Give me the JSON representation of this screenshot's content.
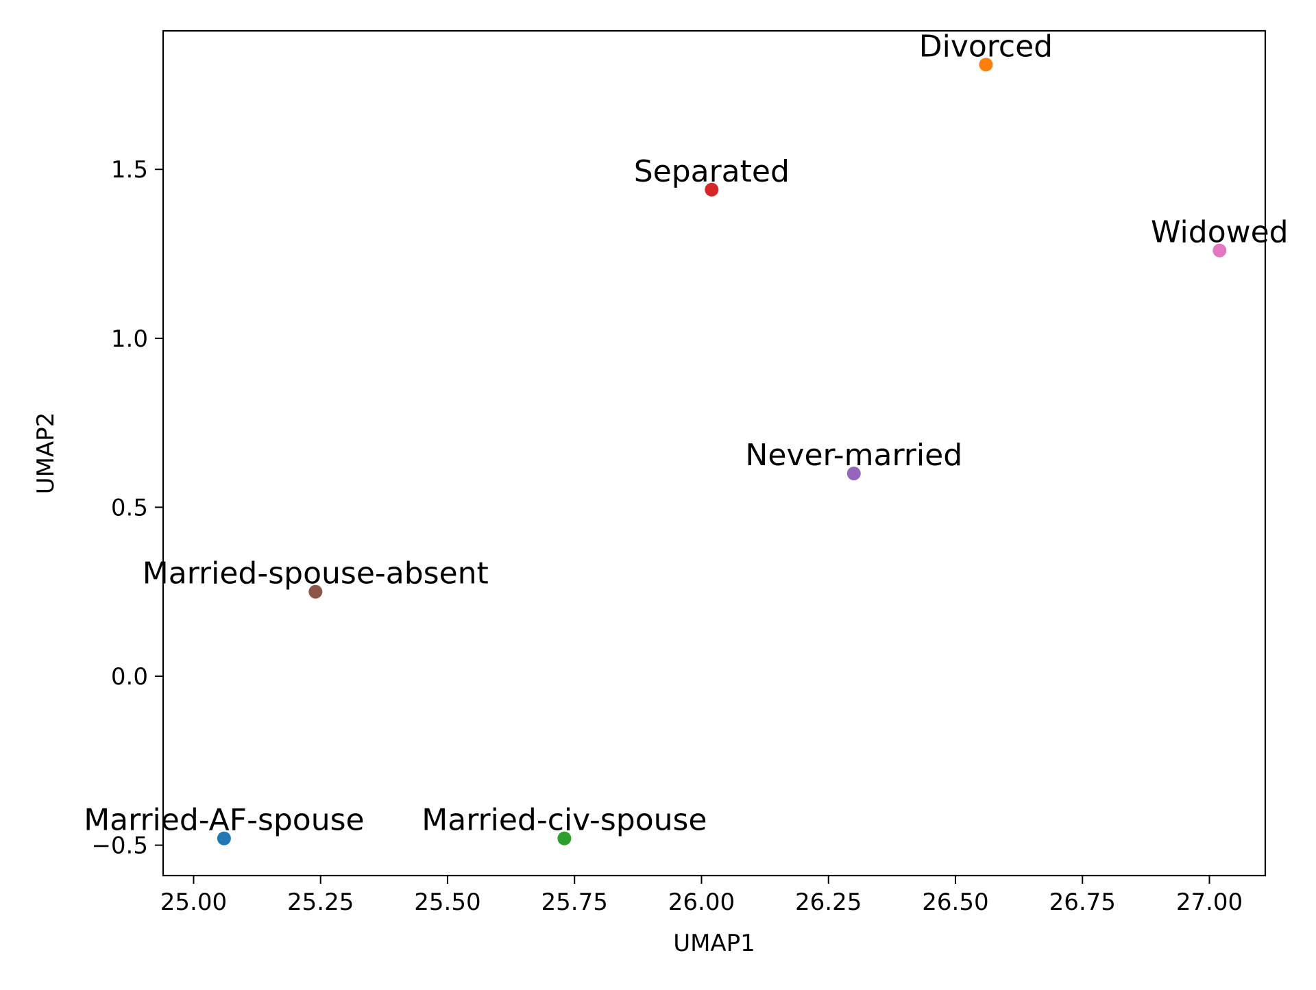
{
  "chart_data": {
    "type": "scatter",
    "title": "",
    "xlabel": "UMAP1",
    "ylabel": "UMAP2",
    "xlim": [
      24.94,
      27.11
    ],
    "ylim": [
      -0.59,
      1.91
    ],
    "xticks": [
      25.0,
      25.25,
      25.5,
      25.75,
      26.0,
      26.25,
      26.5,
      26.75,
      27.0
    ],
    "xtick_labels": [
      "25.00",
      "25.25",
      "25.50",
      "25.75",
      "26.00",
      "26.25",
      "26.50",
      "26.75",
      "27.00"
    ],
    "yticks": [
      -0.5,
      0.0,
      0.5,
      1.0,
      1.5
    ],
    "ytick_labels": [
      "−0.5",
      "0.0",
      "0.5",
      "1.0",
      "1.5"
    ],
    "grid": false,
    "legend": "none",
    "points": [
      {
        "label": "Married-AF-spouse",
        "x": 25.06,
        "y": -0.48,
        "color": "#1f77b4"
      },
      {
        "label": "Divorced",
        "x": 26.56,
        "y": 1.81,
        "color": "#ff7f0e"
      },
      {
        "label": "Married-civ-spouse",
        "x": 25.73,
        "y": -0.48,
        "color": "#2ca02c"
      },
      {
        "label": "Separated",
        "x": 26.02,
        "y": 1.44,
        "color": "#d62728"
      },
      {
        "label": "Never-married",
        "x": 26.3,
        "y": 0.6,
        "color": "#9467bd"
      },
      {
        "label": "Married-spouse-absent",
        "x": 25.24,
        "y": 0.25,
        "color": "#8c564b"
      },
      {
        "label": "Widowed",
        "x": 27.02,
        "y": 1.26,
        "color": "#e377c2"
      }
    ]
  }
}
